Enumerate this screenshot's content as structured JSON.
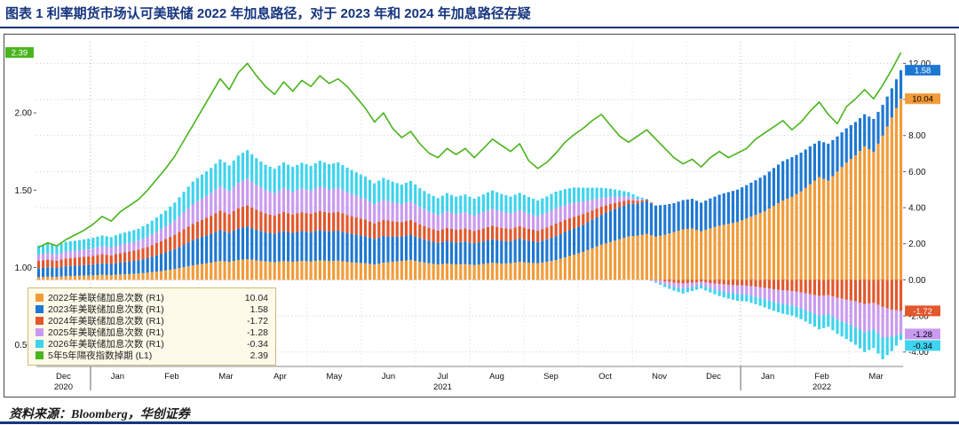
{
  "page": {
    "title": "图表 1 利率期货市场认可美联储 2022 年加息路径，对于 2023 年和 2024 年加息路径存疑",
    "source": "资料来源：Bloomberg，华创证券",
    "accent_color": "#16357f"
  },
  "chart_data": {
    "type": "bar+line",
    "x_axis": {
      "start": "2020-12",
      "end": "2022-03",
      "samples_per_month": 6,
      "months": [
        "Dec",
        "Jan",
        "Feb",
        "Mar",
        "Apr",
        "May",
        "Jun",
        "Jul",
        "Aug",
        "Sep",
        "Oct",
        "Nov",
        "Dec",
        "Jan",
        "Feb",
        "Mar"
      ],
      "years": {
        "0": "2020",
        "7": "2021",
        "14": "2022"
      }
    },
    "left_axis": {
      "range": [
        0.36,
        2.46
      ],
      "ticks": [
        0.5,
        1.0,
        1.5,
        2.0
      ]
    },
    "right_axis": {
      "range": [
        -4.8,
        13.2
      ],
      "ticks": [
        12,
        10,
        8,
        6,
        4,
        2,
        0,
        -2,
        -4
      ]
    },
    "bar_series": [
      {
        "name": "2022年美联储加息次数 (R1)",
        "color": "#f29b38",
        "badge_text": "#000000",
        "last_label": "10.04",
        "values": [
          0.15,
          0.18,
          0.16,
          0.2,
          0.22,
          0.24,
          0.25,
          0.28,
          0.26,
          0.3,
          0.32,
          0.35,
          0.4,
          0.46,
          0.52,
          0.6,
          0.7,
          0.8,
          0.88,
          0.95,
          1.05,
          1.0,
          1.1,
          1.15,
          1.08,
          1.02,
          0.98,
          1.05,
          1.0,
          1.05,
          1.02,
          1.08,
          1.04,
          1.06,
          1.0,
          0.95,
          0.92,
          0.85,
          0.95,
          1.0,
          1.05,
          1.1,
          1.0,
          0.92,
          0.85,
          0.9,
          0.85,
          0.88,
          0.82,
          0.88,
          0.95,
          0.9,
          0.92,
          1.0,
          0.95,
          0.92,
          1.0,
          1.1,
          1.25,
          1.4,
          1.55,
          1.75,
          1.95,
          2.1,
          2.25,
          2.4,
          2.45,
          2.55,
          2.4,
          2.5,
          2.65,
          2.8,
          2.85,
          2.7,
          2.85,
          3.0,
          3.1,
          3.2,
          3.4,
          3.6,
          3.8,
          4.1,
          4.4,
          4.6,
          4.9,
          5.3,
          5.7,
          5.5,
          6.0,
          6.5,
          6.9,
          7.4,
          7.1,
          8.0,
          9.0,
          10.04
        ]
      },
      {
        "name": "2023年美联储加息次数 (R1)",
        "color": "#1e78d2",
        "badge_text": "#ffffff",
        "last_label": "1.58",
        "values": [
          0.5,
          0.52,
          0.5,
          0.55,
          0.56,
          0.58,
          0.6,
          0.64,
          0.62,
          0.66,
          0.7,
          0.74,
          0.8,
          0.9,
          1.0,
          1.1,
          1.25,
          1.4,
          1.5,
          1.6,
          1.7,
          1.62,
          1.75,
          1.8,
          1.7,
          1.62,
          1.58,
          1.66,
          1.6,
          1.65,
          1.62,
          1.68,
          1.64,
          1.66,
          1.6,
          1.55,
          1.5,
          1.42,
          1.48,
          1.4,
          1.35,
          1.4,
          1.32,
          1.25,
          1.2,
          1.26,
          1.22,
          1.25,
          1.2,
          1.25,
          1.3,
          1.26,
          1.22,
          1.28,
          1.22,
          1.18,
          1.25,
          1.32,
          1.4,
          1.45,
          1.5,
          1.58,
          1.65,
          1.72,
          1.78,
          1.8,
          1.78,
          1.82,
          1.72,
          1.66,
          1.6,
          1.62,
          1.64,
          1.58,
          1.66,
          1.72,
          1.76,
          1.8,
          1.85,
          1.92,
          2.0,
          2.1,
          2.18,
          2.2,
          2.15,
          2.1,
          2.0,
          2.05,
          1.95,
          1.9,
          1.85,
          1.78,
          1.82,
          1.7,
          1.62,
          1.58
        ]
      },
      {
        "name": "2024年美联储加息次数 (R1)",
        "color": "#e2572b",
        "badge_text": "#ffffff",
        "last_label": "-1.72",
        "values": [
          0.4,
          0.42,
          0.4,
          0.44,
          0.45,
          0.46,
          0.48,
          0.5,
          0.48,
          0.52,
          0.55,
          0.58,
          0.62,
          0.68,
          0.74,
          0.8,
          0.86,
          0.9,
          0.95,
          1.0,
          1.08,
          1.02,
          1.12,
          1.18,
          1.1,
          1.04,
          1.0,
          1.06,
          1.02,
          1.05,
          1.02,
          1.06,
          1.03,
          1.05,
          1.0,
          0.96,
          0.92,
          0.86,
          0.9,
          0.85,
          0.8,
          0.82,
          0.76,
          0.72,
          0.68,
          0.72,
          0.7,
          0.72,
          0.68,
          0.72,
          0.75,
          0.72,
          0.68,
          0.7,
          0.66,
          0.62,
          0.66,
          0.7,
          0.68,
          0.65,
          0.6,
          0.52,
          0.45,
          0.38,
          0.3,
          0.22,
          0.15,
          0.08,
          0.0,
          -0.08,
          -0.15,
          -0.2,
          -0.15,
          -0.1,
          -0.18,
          -0.24,
          -0.28,
          -0.3,
          -0.32,
          -0.38,
          -0.45,
          -0.52,
          -0.58,
          -0.62,
          -0.7,
          -0.8,
          -0.9,
          -0.85,
          -1.0,
          -1.1,
          -1.2,
          -1.35,
          -1.28,
          -1.5,
          -1.65,
          -1.72
        ]
      },
      {
        "name": "2025年美联储加息次数 (R1)",
        "color": "#c99af0",
        "badge_text": "#000000",
        "last_label": "-1.28",
        "values": [
          0.35,
          0.36,
          0.35,
          0.38,
          0.39,
          0.4,
          0.42,
          0.44,
          0.43,
          0.46,
          0.48,
          0.5,
          0.56,
          0.62,
          0.7,
          0.8,
          0.95,
          1.1,
          1.18,
          1.25,
          1.35,
          1.28,
          1.4,
          1.48,
          1.38,
          1.3,
          1.25,
          1.32,
          1.27,
          1.32,
          1.28,
          1.34,
          1.3,
          1.32,
          1.26,
          1.2,
          1.14,
          1.06,
          1.12,
          1.05,
          1.0,
          1.04,
          0.96,
          0.9,
          0.86,
          0.92,
          0.88,
          0.9,
          0.86,
          0.9,
          0.94,
          0.9,
          0.86,
          0.88,
          0.84,
          0.8,
          0.82,
          0.85,
          0.82,
          0.78,
          0.7,
          0.6,
          0.5,
          0.4,
          0.3,
          0.2,
          0.1,
          0.0,
          -0.1,
          -0.18,
          -0.25,
          -0.3,
          -0.25,
          -0.2,
          -0.28,
          -0.36,
          -0.42,
          -0.48,
          -0.5,
          -0.55,
          -0.62,
          -0.7,
          -0.76,
          -0.8,
          -0.88,
          -0.98,
          -1.1,
          -1.05,
          -1.2,
          -1.3,
          -1.42,
          -1.55,
          -1.48,
          -1.7,
          -1.5,
          -1.28
        ]
      },
      {
        "name": "2026年美联储加息次数 (R1)",
        "color": "#3ed3ee",
        "badge_text": "#000000",
        "last_label": "-0.34",
        "values": [
          0.5,
          0.52,
          0.5,
          0.54,
          0.55,
          0.56,
          0.58,
          0.6,
          0.58,
          0.62,
          0.64,
          0.66,
          0.72,
          0.8,
          0.88,
          0.98,
          1.12,
          1.25,
          1.32,
          1.4,
          1.5,
          1.42,
          1.52,
          1.58,
          1.48,
          1.4,
          1.35,
          1.42,
          1.37,
          1.42,
          1.38,
          1.44,
          1.4,
          1.42,
          1.36,
          1.3,
          1.24,
          1.16,
          1.2,
          1.14,
          1.08,
          1.12,
          1.04,
          0.98,
          0.94,
          1.0,
          0.96,
          0.98,
          0.94,
          0.98,
          1.02,
          0.98,
          0.94,
          0.96,
          0.92,
          0.88,
          0.9,
          0.92,
          0.88,
          0.84,
          0.76,
          0.66,
          0.55,
          0.45,
          0.34,
          0.24,
          0.14,
          0.04,
          -0.06,
          -0.14,
          -0.2,
          -0.26,
          -0.22,
          -0.18,
          -0.24,
          -0.3,
          -0.34,
          -0.38,
          -0.38,
          -0.42,
          -0.46,
          -0.5,
          -0.54,
          -0.56,
          -0.6,
          -0.66,
          -0.74,
          -0.7,
          -0.8,
          -0.88,
          -0.98,
          -1.1,
          -1.02,
          -1.2,
          -0.8,
          -0.34
        ]
      }
    ],
    "line_series": {
      "name": "5年5年隔夜指数掉期 (L1)",
      "color": "#49b41c",
      "badge_text": "#ffffff",
      "last_label": "2.39",
      "values": [
        1.13,
        1.16,
        1.14,
        1.18,
        1.21,
        1.24,
        1.28,
        1.33,
        1.3,
        1.36,
        1.4,
        1.44,
        1.5,
        1.57,
        1.64,
        1.72,
        1.82,
        1.92,
        2.02,
        2.12,
        2.22,
        2.15,
        2.26,
        2.32,
        2.24,
        2.17,
        2.12,
        2.2,
        2.14,
        2.21,
        2.17,
        2.24,
        2.19,
        2.22,
        2.17,
        2.1,
        2.03,
        1.94,
        2.0,
        1.9,
        1.84,
        1.88,
        1.8,
        1.74,
        1.71,
        1.77,
        1.73,
        1.77,
        1.71,
        1.77,
        1.83,
        1.79,
        1.75,
        1.8,
        1.69,
        1.64,
        1.68,
        1.74,
        1.81,
        1.86,
        1.9,
        1.95,
        1.99,
        1.92,
        1.85,
        1.81,
        1.85,
        1.89,
        1.83,
        1.77,
        1.71,
        1.67,
        1.7,
        1.65,
        1.71,
        1.75,
        1.71,
        1.74,
        1.77,
        1.83,
        1.87,
        1.91,
        1.95,
        1.89,
        1.94,
        2.01,
        2.07,
        1.99,
        1.93,
        2.04,
        2.09,
        2.15,
        2.09,
        2.18,
        2.28,
        2.39
      ]
    },
    "legend": {
      "entries": [
        {
          "label": "2022年美联储加息次数 (R1)",
          "value": "10.04",
          "color": "#f29b38"
        },
        {
          "label": "2023年美联储加息次数 (R1)",
          "value": "1.58",
          "color": "#1e78d2"
        },
        {
          "label": "2024年美联储加息次数 (R1)",
          "value": "-1.72",
          "color": "#e2572b"
        },
        {
          "label": "2025年美联储加息次数 (R1)",
          "value": "-1.28",
          "color": "#c99af0"
        },
        {
          "label": "2026年美联储加息次数 (R1)",
          "value": "-0.34",
          "color": "#3ed3ee"
        },
        {
          "label": "5年5年隔夜指数掉期 (L1)",
          "value": "2.39",
          "color": "#49b41c"
        }
      ]
    }
  }
}
